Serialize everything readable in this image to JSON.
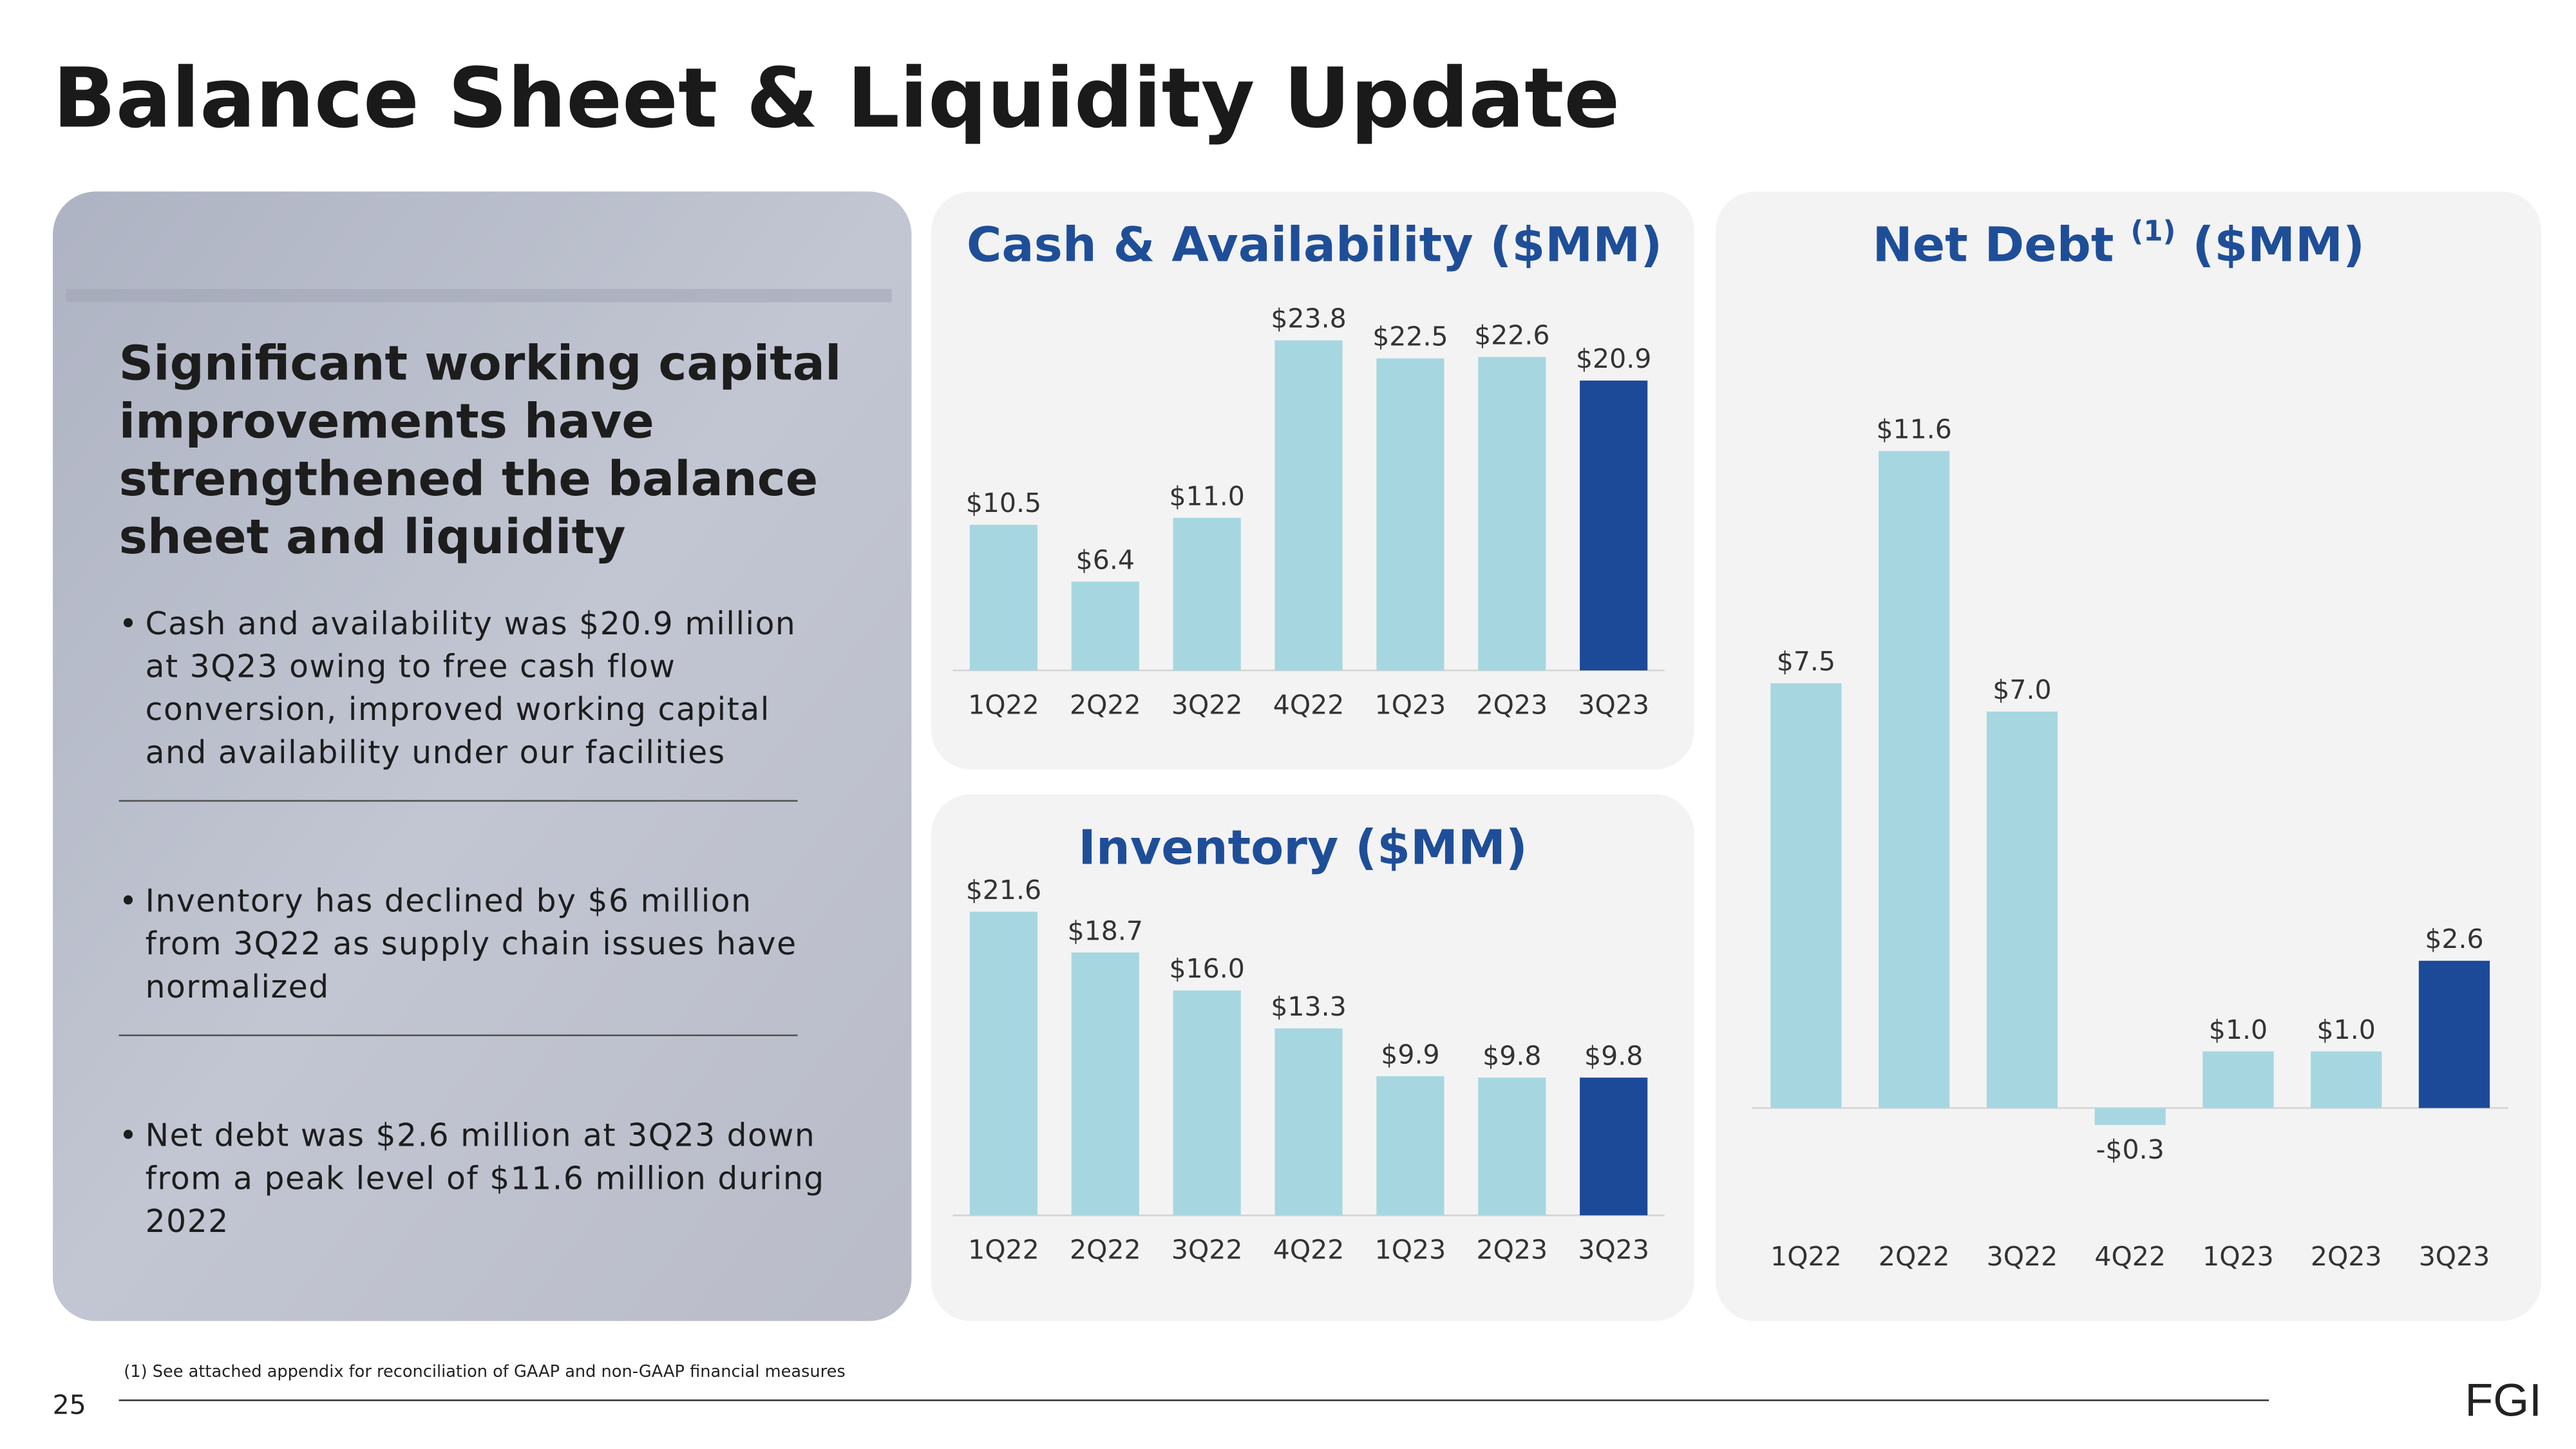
{
  "title": "Balance Sheet & Liquidity Update",
  "panel": {
    "heading": [
      "Significant working capital",
      "improvements have",
      "strengthened the balance",
      "sheet and liquidity"
    ],
    "bullets": [
      [
        "Cash and availability was $20.9 million",
        "at 3Q23 owing to free cash flow",
        "conversion, improved working capital",
        "and availability under our facilities"
      ],
      [
        "Inventory has declined by $6 million",
        "from 3Q22 as supply chain issues have",
        "normalized"
      ],
      [
        "Net debt was $2.6 million at 3Q23 down",
        "from a peak level of $11.6 million during",
        "2022"
      ]
    ]
  },
  "chart_data": [
    {
      "type": "bar",
      "title": "Cash & Availability ($MM)",
      "categories": [
        "1Q22",
        "2Q22",
        "3Q22",
        "4Q22",
        "1Q23",
        "2Q23",
        "3Q23"
      ],
      "values": [
        10.5,
        6.4,
        11.0,
        23.8,
        22.5,
        22.6,
        20.9
      ],
      "value_labels": [
        "$10.5",
        "$6.4",
        "$11.0",
        "$23.8",
        "$22.5",
        "$22.6",
        "$20.9"
      ],
      "colors": [
        "#a6d7e1",
        "#a6d7e1",
        "#a6d7e1",
        "#a6d7e1",
        "#a6d7e1",
        "#a6d7e1",
        "#1c4a99"
      ],
      "ylim": [
        0,
        25.6
      ]
    },
    {
      "type": "bar",
      "title": "Inventory ($MM)",
      "categories": [
        "1Q22",
        "2Q22",
        "3Q22",
        "4Q22",
        "1Q23",
        "2Q23",
        "3Q23"
      ],
      "values": [
        21.6,
        18.7,
        16.0,
        13.3,
        9.9,
        9.8,
        9.8
      ],
      "value_labels": [
        "$21.6",
        "$18.7",
        "$16.0",
        "$13.3",
        "$9.9",
        "$9.8",
        "$9.8"
      ],
      "colors": [
        "#a6d7e1",
        "#a6d7e1",
        "#a6d7e1",
        "#a6d7e1",
        "#a6d7e1",
        "#a6d7e1",
        "#1c4a99"
      ],
      "ylim": [
        0,
        24.2
      ]
    },
    {
      "type": "bar",
      "title": "Net Debt",
      "title_note": "(1)",
      "title_suffix": "($MM)",
      "categories": [
        "1Q22",
        "2Q22",
        "3Q22",
        "4Q22",
        "1Q23",
        "2Q23",
        "3Q23"
      ],
      "values": [
        7.5,
        11.6,
        7.0,
        -0.3,
        1.0,
        1.0,
        2.6
      ],
      "value_labels": [
        "$7.5",
        "$11.6",
        "$7.0",
        "-$0.3",
        "$1.0",
        "$1.0",
        "$2.6"
      ],
      "colors": [
        "#a6d7e1",
        "#a6d7e1",
        "#a6d7e1",
        "#a6d7e1",
        "#a6d7e1",
        "#a6d7e1",
        "#1c4a99"
      ],
      "ylim": [
        -1,
        12.4
      ]
    }
  ],
  "footnote": "(1) See attached appendix for reconciliation of GAAP and non-GAAP financial measures",
  "page_number": "25",
  "logo": "FGI"
}
